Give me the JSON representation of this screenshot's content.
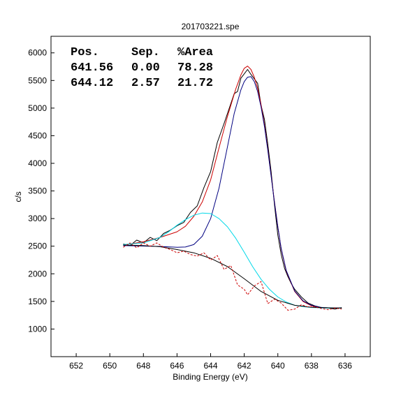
{
  "chart_data": {
    "type": "line",
    "title": "201703221.spe",
    "xlabel": "Binding Energy (eV)",
    "ylabel": "c/s",
    "xlim": [
      653.5,
      634.5
    ],
    "ylim": [
      500,
      6300
    ],
    "x_ticks": [
      652,
      650,
      648,
      646,
      644,
      642,
      640,
      638,
      636
    ],
    "y_ticks": [
      1000,
      1500,
      2000,
      2500,
      3000,
      3500,
      4000,
      4500,
      5000,
      5500,
      6000
    ],
    "grid": false,
    "legend": "none",
    "peak_table": {
      "headers": [
        "Pos.",
        "Sep.",
        "%Area"
      ],
      "rows": [
        [
          "641.56",
          "0.00",
          "78.28"
        ],
        [
          "644.12",
          "2.57",
          "21.72"
        ]
      ]
    },
    "series": [
      {
        "role": "raw data",
        "color": "#000000",
        "style": "solid",
        "x": [
          649.2,
          648.8,
          648.4,
          648.0,
          647.6,
          647.2,
          646.8,
          646.4,
          646.0,
          645.6,
          645.2,
          644.8,
          644.4,
          644.0,
          643.6,
          643.2,
          642.8,
          642.6,
          642.4,
          642.2,
          642.0,
          641.8,
          641.6,
          641.4,
          641.2,
          641.0,
          640.8,
          640.6,
          640.4,
          640.2,
          640.0,
          639.8,
          639.6,
          639.4,
          639.2,
          639.0,
          638.6,
          638.2,
          637.8,
          637.4,
          637.0,
          636.6,
          636.2
        ],
        "y": [
          2540,
          2510,
          2610,
          2560,
          2660,
          2600,
          2730,
          2790,
          2870,
          2930,
          3110,
          3230,
          3560,
          3850,
          4380,
          4720,
          5080,
          5260,
          5300,
          5540,
          5620,
          5700,
          5610,
          5530,
          5450,
          5050,
          4800,
          4350,
          3850,
          3250,
          2700,
          2350,
          2100,
          1950,
          1820,
          1720,
          1580,
          1470,
          1420,
          1390,
          1380,
          1360,
          1390
        ]
      },
      {
        "role": "envelope fit",
        "color": "#cc0000",
        "style": "solid",
        "x": [
          649.2,
          648.0,
          647.0,
          646.0,
          645.5,
          645.0,
          644.5,
          644.0,
          643.5,
          643.0,
          642.5,
          642.2,
          642.0,
          641.8,
          641.6,
          641.4,
          641.2,
          641.0,
          640.8,
          640.6,
          640.4,
          640.2,
          640.0,
          639.8,
          639.5,
          639.0,
          638.5,
          638.0,
          637.5,
          637.0,
          636.2
        ],
        "y": [
          2520,
          2580,
          2660,
          2760,
          2860,
          3040,
          3300,
          3700,
          4280,
          4850,
          5350,
          5600,
          5720,
          5760,
          5700,
          5560,
          5360,
          5060,
          4700,
          4260,
          3780,
          3300,
          2850,
          2450,
          2050,
          1680,
          1500,
          1420,
          1390,
          1385,
          1380
        ]
      },
      {
        "role": "component 641.56",
        "color": "#000080",
        "style": "solid",
        "x": [
          649.2,
          647.0,
          646.0,
          645.5,
          645.0,
          644.5,
          644.0,
          643.5,
          643.0,
          642.6,
          642.2,
          642.0,
          641.8,
          641.6,
          641.4,
          641.2,
          641.0,
          640.8,
          640.6,
          640.4,
          640.2,
          640.0,
          639.8,
          639.5,
          639.0,
          638.5,
          638.0,
          637.5,
          637.0,
          636.2
        ],
        "y": [
          2510,
          2495,
          2480,
          2485,
          2530,
          2680,
          3000,
          3550,
          4300,
          4900,
          5330,
          5480,
          5560,
          5570,
          5480,
          5300,
          5020,
          4670,
          4240,
          3770,
          3290,
          2850,
          2460,
          2060,
          1690,
          1510,
          1430,
          1395,
          1385,
          1380
        ]
      },
      {
        "role": "component 644.12",
        "color": "#00d8e8",
        "style": "solid",
        "x": [
          649.2,
          648.0,
          647.0,
          646.5,
          646.0,
          645.5,
          645.0,
          644.5,
          644.0,
          643.5,
          643.0,
          642.5,
          642.0,
          641.5,
          641.0,
          640.5,
          640.0,
          639.5,
          639.0,
          638.5,
          638.0,
          637.0,
          636.2
        ],
        "y": [
          2530,
          2560,
          2660,
          2760,
          2880,
          2980,
          3060,
          3100,
          3090,
          3000,
          2850,
          2640,
          2390,
          2130,
          1900,
          1720,
          1580,
          1490,
          1430,
          1405,
          1390,
          1380,
          1380
        ]
      },
      {
        "role": "background",
        "color": "#000000",
        "style": "solid",
        "x": [
          649.2,
          648.0,
          647.0,
          646.0,
          645.0,
          644.0,
          643.0,
          642.0,
          641.0,
          640.0,
          639.0,
          638.0,
          637.0,
          636.2
        ],
        "y": [
          2520,
          2510,
          2490,
          2440,
          2380,
          2280,
          2130,
          1910,
          1680,
          1520,
          1430,
          1395,
          1385,
          1380
        ]
      },
      {
        "role": "residual",
        "color": "#cc0000",
        "style": "dashed",
        "x": [
          649.2,
          648.8,
          648.4,
          648.0,
          647.6,
          647.2,
          646.8,
          646.4,
          646.0,
          645.6,
          645.2,
          644.8,
          644.4,
          644.0,
          643.6,
          643.2,
          642.8,
          642.4,
          642.0,
          641.8,
          641.4,
          641.0,
          640.6,
          640.2,
          639.8,
          639.4,
          639.0,
          638.6,
          638.2,
          637.8,
          637.4,
          637.0,
          636.6,
          636.2
        ],
        "y": [
          2480,
          2560,
          2470,
          2560,
          2500,
          2560,
          2480,
          2440,
          2380,
          2410,
          2350,
          2320,
          2380,
          2250,
          2330,
          2080,
          2150,
          1800,
          1720,
          1620,
          1780,
          1860,
          1460,
          1540,
          1470,
          1340,
          1360,
          1440,
          1400,
          1400,
          1370,
          1350,
          1380,
          1360
        ]
      }
    ]
  }
}
